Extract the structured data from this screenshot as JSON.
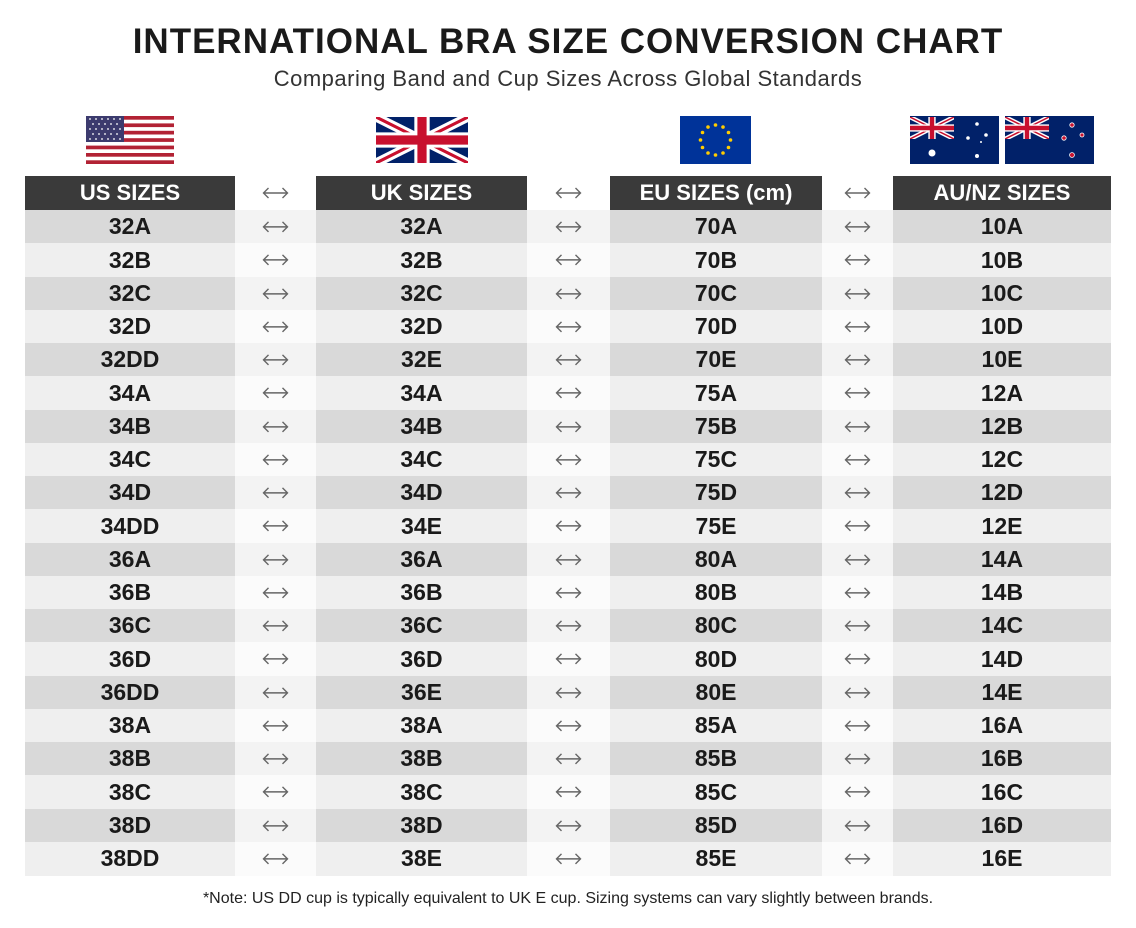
{
  "header": {
    "title": "INTERNATIONAL BRA SIZE CONVERSION CHART",
    "subtitle": "Comparing Band and Cup Sizes Across Global Standards"
  },
  "table": {
    "columns": [
      "US SIZES",
      "UK SIZES",
      "EU SIZES (cm)",
      "AU/NZ SIZES"
    ],
    "rows": [
      [
        "32A",
        "32A",
        "70A",
        "10A"
      ],
      [
        "32B",
        "32B",
        "70B",
        "10B"
      ],
      [
        "32C",
        "32C",
        "70C",
        "10C"
      ],
      [
        "32D",
        "32D",
        "70D",
        "10D"
      ],
      [
        "32DD",
        "32E",
        "70E",
        "10E"
      ],
      [
        "34A",
        "34A",
        "75A",
        "12A"
      ],
      [
        "34B",
        "34B",
        "75B",
        "12B"
      ],
      [
        "34C",
        "34C",
        "75C",
        "12C"
      ],
      [
        "34D",
        "34D",
        "75D",
        "12D"
      ],
      [
        "34DD",
        "34E",
        "75E",
        "12E"
      ],
      [
        "36A",
        "36A",
        "80A",
        "14A"
      ],
      [
        "36B",
        "36B",
        "80B",
        "14B"
      ],
      [
        "36C",
        "36C",
        "80C",
        "14C"
      ],
      [
        "36D",
        "36D",
        "80D",
        "14D"
      ],
      [
        "36DD",
        "36E",
        "80E",
        "14E"
      ],
      [
        "38A",
        "38A",
        "85A",
        "16A"
      ],
      [
        "38B",
        "38B",
        "85B",
        "16B"
      ],
      [
        "38C",
        "38C",
        "85C",
        "16C"
      ],
      [
        "38D",
        "38D",
        "85D",
        "16D"
      ],
      [
        "38DD",
        "38E",
        "85E",
        "16E"
      ]
    ]
  },
  "note": "*Note: US DD cup is typically equivalent to UK E cup. Sizing systems can vary slightly between brands."
}
